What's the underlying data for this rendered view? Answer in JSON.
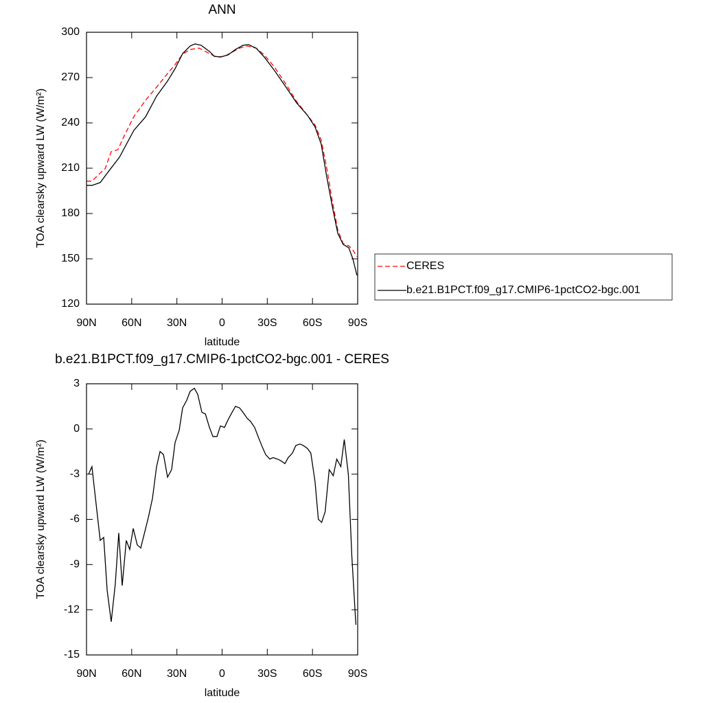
{
  "chart_data": [
    {
      "type": "line",
      "title": "ANN",
      "xlabel": "latitude",
      "ylabel": "TOA clearsky upward LW (W/m²)",
      "xlim": [
        90,
        -90
      ],
      "ylim": [
        120,
        300
      ],
      "xticks": [
        {
          "value": 90,
          "label": "90N"
        },
        {
          "value": 60,
          "label": "60N"
        },
        {
          "value": 30,
          "label": "30N"
        },
        0,
        {
          "value": -30,
          "label": "30S"
        },
        {
          "value": -60,
          "label": "60S"
        },
        {
          "value": -90,
          "label": "90S"
        }
      ],
      "yticks": [
        120,
        150,
        180,
        210,
        240,
        270,
        300
      ],
      "legend": "right",
      "series": [
        {
          "name": "CERES",
          "color": "#ff0000",
          "dashed": true,
          "x": [
            90,
            86.4,
            80.9,
            77.7,
            73.6,
            69.1,
            65.4,
            58.6,
            50.8,
            43.5,
            36.2,
            31.2,
            26.2,
            21.2,
            15.3,
            8.4,
            3.9,
            -1.6,
            -6.6,
            -11.6,
            -16.6,
            -22.6,
            -28.0,
            -34.9,
            -42.2,
            -49.5,
            -56.7,
            -61.7,
            -65.8,
            -69.5,
            -73.1,
            -76.8,
            -80.4,
            -84.1,
            -86.8,
            -89.5
          ],
          "values": [
            201.4,
            201.4,
            206.8,
            209.5,
            220.9,
            222.3,
            230.5,
            244.1,
            255,
            263.6,
            272.7,
            278.6,
            285.5,
            288.6,
            289.5,
            285.9,
            283.6,
            284.1,
            286.8,
            289.5,
            290.9,
            289.5,
            285,
            276.8,
            265.9,
            254.1,
            245,
            238.6,
            228.6,
            210,
            188.6,
            169.1,
            160,
            158.6,
            155.9,
            151.4
          ]
        },
        {
          "name": "b.e21.B1PCT.f09_g17.CMIP6-1pctCO2-bgc.001",
          "color": "#000000",
          "dashed": false,
          "x": [
            90,
            86.4,
            80.9,
            74.5,
            68.1,
            58.6,
            50.8,
            43.5,
            36.2,
            31.2,
            26.2,
            21.2,
            18.0,
            13.9,
            8.4,
            5.2,
            1.1,
            -3.9,
            -8.9,
            -13.9,
            -17.6,
            -22.6,
            -28.0,
            -34.9,
            -42.2,
            -49.5,
            -56.7,
            -61.7,
            -65.8,
            -69.5,
            -73.1,
            -76.8,
            -80.4,
            -84.1,
            -86.8,
            -89.5
          ],
          "values": [
            198.6,
            198.6,
            200.5,
            209,
            217.3,
            235,
            244,
            257.7,
            267.7,
            275.9,
            285.9,
            290.9,
            292.3,
            291.4,
            287.3,
            284.1,
            283.6,
            285,
            288.6,
            291.4,
            291.8,
            289.5,
            283.6,
            274.5,
            264,
            253.2,
            245,
            237.3,
            225.9,
            204.1,
            185,
            166.8,
            159.5,
            157.3,
            150,
            139.1
          ]
        }
      ]
    },
    {
      "type": "line",
      "title": "b.e21.B1PCT.f09_g17.CMIP6-1pctCO2-bgc.001 - CERES",
      "xlabel": "latitude",
      "ylabel": "TOA clearsky upward LW (W/m²)",
      "xlim": [
        90,
        -90
      ],
      "ylim": [
        -15,
        3
      ],
      "xticks": [
        {
          "value": 90,
          "label": "90N"
        },
        {
          "value": 60,
          "label": "60N"
        },
        {
          "value": 30,
          "label": "30N"
        },
        0,
        {
          "value": -30,
          "label": "30S"
        },
        {
          "value": -60,
          "label": "60S"
        },
        {
          "value": -90,
          "label": "90S"
        }
      ],
      "yticks": [
        -15,
        -12,
        -9,
        -6,
        -3,
        0,
        3
      ],
      "series": [
        {
          "color": "#000000",
          "dashed": false,
          "x": [
            88.6,
            86.4,
            80.9,
            78.6,
            76.3,
            73.6,
            70.9,
            68.6,
            66.3,
            63.6,
            61.3,
            59.0,
            56.3,
            54.0,
            49.0,
            46.2,
            43.5,
            41.2,
            38.9,
            36.2,
            33.5,
            31.2,
            28.5,
            26.2,
            23.5,
            21.2,
            18.4,
            16.2,
            13.4,
            11.1,
            8.4,
            6.1,
            3.4,
            1.1,
            -1.6,
            -3.9,
            -6.6,
            -8.9,
            -11.6,
            -13.9,
            -16.7,
            -18.9,
            -21.6,
            -23.9,
            -26.7,
            -28.9,
            -31.7,
            -33.9,
            -36.7,
            -38.9,
            -41.7,
            -43.9,
            -46.7,
            -48.9,
            -51.7,
            -53.9,
            -56.7,
            -58.9,
            -61.7,
            -63.9,
            -66.1,
            -68.4,
            -71.1,
            -73.8,
            -76.1,
            -78.8,
            -81.1,
            -83.8,
            -86.1,
            -88.8
          ],
          "values": [
            -3.0,
            -2.5,
            -7.4,
            -7.2,
            -10.7,
            -12.8,
            -10.3,
            -6.9,
            -10.4,
            -7.4,
            -8.0,
            -6.6,
            -7.7,
            -7.9,
            -5.9,
            -4.6,
            -2.5,
            -1.5,
            -1.7,
            -3.2,
            -2.7,
            -0.9,
            -0.1,
            1.4,
            1.9,
            2.5,
            2.7,
            2.3,
            1.1,
            1.0,
            0.1,
            -0.5,
            -0.5,
            0.2,
            0.1,
            0.6,
            1.1,
            1.5,
            1.4,
            1.1,
            0.7,
            0.5,
            0.1,
            -0.5,
            -1.2,
            -1.7,
            -2.0,
            -1.9,
            -2.0,
            -2.1,
            -2.3,
            -1.9,
            -1.6,
            -1.1,
            -1.0,
            -1.1,
            -1.3,
            -1.6,
            -3.5,
            -6.0,
            -6.2,
            -5.5,
            -2.7,
            -3.1,
            -2.0,
            -2.5,
            -0.7,
            -3.0,
            -8.4,
            -13.0
          ]
        }
      ]
    }
  ]
}
